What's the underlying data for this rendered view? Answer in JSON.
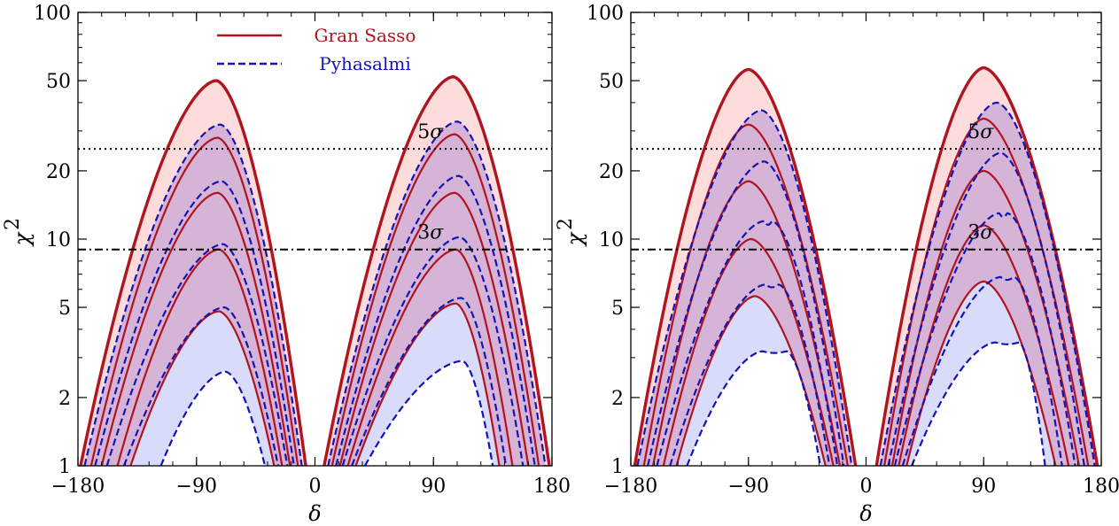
{
  "chart_data": [
    {
      "type": "line",
      "xlabel": "δ",
      "ylabel": "χ",
      "ylabel_sup": "2",
      "xlim": [
        -180,
        180
      ],
      "ylim": [
        1,
        100
      ],
      "yscale": "log",
      "x_ticks": [
        -180,
        -90,
        0,
        90,
        180
      ],
      "x_tick_labels": [
        "−180",
        "−90",
        "0",
        "90",
        "180"
      ],
      "y_ticks": [
        1,
        2,
        5,
        10,
        20,
        50,
        100
      ],
      "y_tick_labels": [
        "1",
        "2",
        "5",
        "10",
        "20",
        "50",
        "100"
      ],
      "hlines": [
        {
          "y": 25,
          "label_sym": "5",
          "label_greek": "σ",
          "style": "dotted",
          "label_x": 90
        },
        {
          "y": 9,
          "label_sym": "3",
          "label_greek": "σ",
          "style": "dashdot",
          "label_x": 90
        }
      ],
      "legend": {
        "placement": "top-left",
        "entries": [
          {
            "name": "Gran Sasso",
            "color": "#b0141e",
            "style": "solid"
          },
          {
            "name": "Pyhasalmi",
            "color": "#1414b4",
            "style": "dashed"
          }
        ]
      },
      "colors": {
        "gran_sasso": "#b0141e",
        "pyhasalmi": "#1414b4",
        "gs_fill": "#ffd6d6",
        "pyh_fill": "#d2d5fa",
        "overlap_fill": "#d6b4d8"
      },
      "series": [
        {
          "group": "Gran Sasso",
          "style": "solid",
          "lobes": [
            {
              "x0": -178,
              "x1": -7,
              "peak_x": -75,
              "peak": 50,
              "flat": 0
            },
            {
              "x0": 7,
              "x1": 178,
              "peak_x": 105,
              "peak": 52,
              "flat": 0
            }
          ],
          "heavy": true
        },
        {
          "group": "Gran Sasso",
          "style": "solid",
          "lobes": [
            {
              "x0": -170,
              "x1": -13,
              "peak_x": -74,
              "peak": 28,
              "flat": 0
            },
            {
              "x0": 13,
              "x1": 170,
              "peak_x": 106,
              "peak": 29,
              "flat": 0
            }
          ]
        },
        {
          "group": "Gran Sasso",
          "style": "solid",
          "lobes": [
            {
              "x0": -162,
              "x1": -19,
              "peak_x": -74,
              "peak": 16,
              "flat": 0
            },
            {
              "x0": 19,
              "x1": 162,
              "peak_x": 106,
              "peak": 16,
              "flat": 0
            }
          ]
        },
        {
          "group": "Gran Sasso",
          "style": "solid",
          "lobes": [
            {
              "x0": -150,
              "x1": -25,
              "peak_x": -73,
              "peak": 9,
              "flat": 0
            },
            {
              "x0": 25,
              "x1": 150,
              "peak_x": 107,
              "peak": 9,
              "flat": 0
            }
          ]
        },
        {
          "group": "Gran Sasso",
          "style": "solid",
          "lobes": [
            {
              "x0": -140,
              "x1": -31,
              "peak_x": -73,
              "peak": 4.8,
              "flat": 0
            },
            {
              "x0": 31,
              "x1": 140,
              "peak_x": 107,
              "peak": 5.2,
              "flat": 0
            }
          ]
        },
        {
          "group": "Pyhasalmi",
          "style": "dashed",
          "lobes": [
            {
              "x0": -175,
              "x1": -10,
              "peak_x": -72,
              "peak": 32,
              "flat": 0
            },
            {
              "x0": 10,
              "x1": 175,
              "peak_x": 108,
              "peak": 33,
              "flat": 0
            }
          ]
        },
        {
          "group": "Pyhasalmi",
          "style": "dashed",
          "lobes": [
            {
              "x0": -167,
              "x1": -16,
              "peak_x": -71,
              "peak": 18,
              "flat": 0
            },
            {
              "x0": 16,
              "x1": 167,
              "peak_x": 109,
              "peak": 19,
              "flat": 0
            }
          ]
        },
        {
          "group": "Pyhasalmi",
          "style": "dashed",
          "lobes": [
            {
              "x0": -158,
              "x1": -21,
              "peak_x": -70,
              "peak": 9.5,
              "flat": 0
            },
            {
              "x0": 21,
              "x1": 158,
              "peak_x": 110,
              "peak": 10.2,
              "flat": 0
            }
          ]
        },
        {
          "group": "Pyhasalmi",
          "style": "dashed",
          "lobes": [
            {
              "x0": -145,
              "x1": -28,
              "peak_x": -69,
              "peak": 5.0,
              "flat": 0
            },
            {
              "x0": 28,
              "x1": 145,
              "peak_x": 111,
              "peak": 5.5,
              "flat": 0
            }
          ]
        },
        {
          "group": "Pyhasalmi",
          "style": "dashed",
          "lobes": [
            {
              "x0": -117,
              "x1": -38,
              "peak_x": -68,
              "peak": 2.6,
              "flat": 0
            },
            {
              "x0": 38,
              "x1": 135,
              "peak_x": 112,
              "peak": 2.9,
              "flat": 0
            }
          ]
        }
      ]
    },
    {
      "type": "line",
      "xlabel": "δ",
      "ylabel": "χ",
      "ylabel_sup": "2",
      "xlim": [
        -180,
        180
      ],
      "ylim": [
        1,
        100
      ],
      "yscale": "log",
      "x_ticks": [
        -180,
        -90,
        0,
        90,
        180
      ],
      "x_tick_labels": [
        "−180",
        "−90",
        "0",
        "90",
        "180"
      ],
      "y_ticks": [
        1,
        2,
        5,
        10,
        20,
        50,
        100
      ],
      "y_tick_labels": [
        "1",
        "2",
        "5",
        "10",
        "20",
        "50",
        "100"
      ],
      "hlines": [
        {
          "y": 25,
          "label_sym": "5",
          "label_greek": "σ",
          "style": "dotted",
          "label_x": 90
        },
        {
          "y": 9,
          "label_sym": "3",
          "label_greek": "σ",
          "style": "dashdot",
          "label_x": 90
        }
      ],
      "colors": {
        "gran_sasso": "#b0141e",
        "pyhasalmi": "#1414b4",
        "gs_fill": "#ffd6d6",
        "pyh_fill": "#d2d5fa",
        "overlap_fill": "#d6b4d8"
      },
      "series": [
        {
          "group": "Gran Sasso",
          "style": "solid",
          "lobes": [
            {
              "x0": -177,
              "x1": -8,
              "peak_x": -90,
              "peak": 56,
              "flat": 0
            },
            {
              "x0": 8,
              "x1": 177,
              "peak_x": 90,
              "peak": 57,
              "flat": 0
            }
          ],
          "heavy": true
        },
        {
          "group": "Gran Sasso",
          "style": "solid",
          "lobes": [
            {
              "x0": -170,
              "x1": -14,
              "peak_x": -90,
              "peak": 32,
              "flat": 0
            },
            {
              "x0": 14,
              "x1": 170,
              "peak_x": 90,
              "peak": 34,
              "flat": 0
            }
          ]
        },
        {
          "group": "Gran Sasso",
          "style": "solid",
          "lobes": [
            {
              "x0": -163,
              "x1": -20,
              "peak_x": -90,
              "peak": 18,
              "flat": 0
            },
            {
              "x0": 20,
              "x1": 163,
              "peak_x": 90,
              "peak": 20,
              "flat": 0
            }
          ]
        },
        {
          "group": "Gran Sasso",
          "style": "solid",
          "lobes": [
            {
              "x0": -155,
              "x1": -25,
              "peak_x": -88,
              "peak": 10,
              "flat": 0
            },
            {
              "x0": 25,
              "x1": 155,
              "peak_x": 90,
              "peak": 11.5,
              "flat": 0
            }
          ]
        },
        {
          "group": "Gran Sasso",
          "style": "solid",
          "lobes": [
            {
              "x0": -145,
              "x1": -31,
              "peak_x": -85,
              "peak": 5.6,
              "flat": 0
            },
            {
              "x0": 31,
              "x1": 145,
              "peak_x": 90,
              "peak": 6.5,
              "flat": 0
            }
          ]
        },
        {
          "group": "Pyhasalmi",
          "style": "dashed",
          "lobes": [
            {
              "x0": -175,
              "x1": -11,
              "peak_x": -80,
              "peak": 37,
              "flat": 0
            },
            {
              "x0": 11,
              "x1": 175,
              "peak_x": 100,
              "peak": 40,
              "flat": 0
            }
          ]
        },
        {
          "group": "Pyhasalmi",
          "style": "dashed",
          "lobes": [
            {
              "x0": -167,
              "x1": -17,
              "peak_x": -78,
              "peak": 22,
              "flat": 0
            },
            {
              "x0": 17,
              "x1": 167,
              "peak_x": 103,
              "peak": 24,
              "flat": 0
            }
          ]
        },
        {
          "group": "Pyhasalmi",
          "style": "dashed",
          "lobes": [
            {
              "x0": -160,
              "x1": -22,
              "peak_x": -75,
              "peak": 12,
              "flat": 6
            },
            {
              "x0": 22,
              "x1": 160,
              "peak_x": 105,
              "peak": 13,
              "flat": 6
            }
          ]
        },
        {
          "group": "Pyhasalmi",
          "style": "dashed",
          "lobes": [
            {
              "x0": -150,
              "x1": -28,
              "peak_x": -72,
              "peak": 6.3,
              "flat": 10
            },
            {
              "x0": 28,
              "x1": 150,
              "peak_x": 108,
              "peak": 6.8,
              "flat": 10
            }
          ]
        },
        {
          "group": "Pyhasalmi",
          "style": "dashed",
          "lobes": [
            {
              "x0": -137,
              "x1": -35,
              "peak_x": -70,
              "peak": 3.2,
              "flat": 18
            },
            {
              "x0": 35,
              "x1": 137,
              "peak_x": 108,
              "peak": 3.5,
              "flat": 18
            }
          ]
        }
      ]
    }
  ]
}
